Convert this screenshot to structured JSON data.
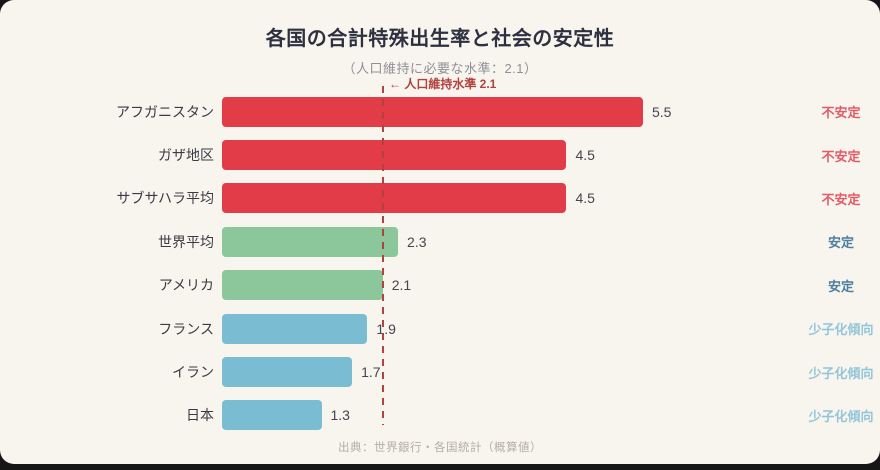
{
  "page": {
    "outer_background": "#161616",
    "card_background": "#f8f5ee"
  },
  "header": {
    "title": "各国の合計特殊出生率と社会の安定性",
    "subtitle": "（人口維持に必要な水準：2.1）"
  },
  "chart_data": {
    "type": "bar",
    "orientation": "horizontal",
    "title": "各国の合計特殊出生率と社会の安定性",
    "subtitle": "（人口維持に必要な水準：2.1）",
    "xlim": [
      0,
      5.5
    ],
    "grid": false,
    "legend_position": "none",
    "categories": [
      "アフガニスタン",
      "ガザ地区",
      "サブサハラ平均",
      "世界平均",
      "アメリカ",
      "フランス",
      "イラン",
      "日本"
    ],
    "values": [
      5.5,
      4.5,
      4.5,
      2.3,
      2.1,
      1.9,
      1.7,
      1.3
    ],
    "value_labels": [
      "5.5",
      "4.5",
      "4.5",
      "2.3",
      "2.1",
      "1.9",
      "1.7",
      "1.3"
    ],
    "statuses": [
      "不安定",
      "不安定",
      "不安定",
      "安定",
      "安定",
      "少子化傾向",
      "少子化傾向",
      "少子化傾向"
    ],
    "status_types": [
      "unstable",
      "unstable",
      "unstable",
      "stable",
      "stable",
      "declining",
      "declining",
      "declining"
    ],
    "threshold": {
      "value": 2.1,
      "label": "← 人口維持水準 2.1",
      "color": "#b2423e"
    }
  },
  "colors": {
    "bar": {
      "unstable": "#e23c49",
      "stable": "#8cc79c",
      "declining": "#7abcd2"
    },
    "status_text": {
      "unstable": "#e25b68",
      "stable": "#4e7f9e",
      "declining": "#93c5d8"
    }
  },
  "footer": {
    "source": "出典：世界銀行・各国統計（概算値）"
  }
}
